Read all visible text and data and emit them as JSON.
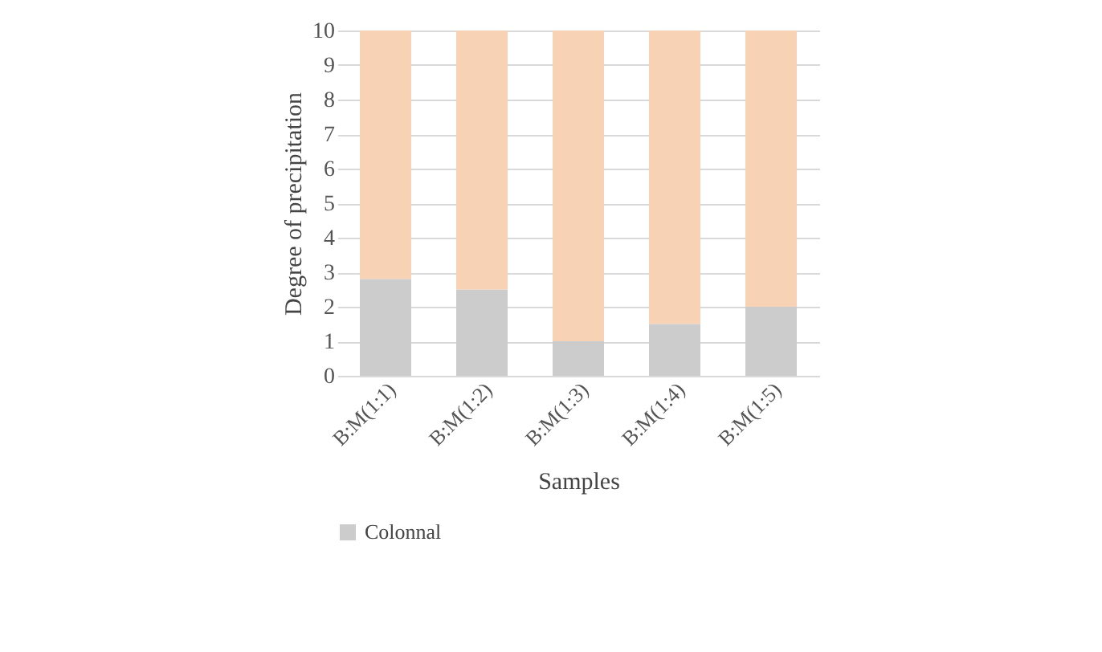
{
  "chart_data": {
    "type": "bar",
    "stacked": true,
    "xlabel": "Samples",
    "ylabel": "Degree of precipitation",
    "categories": [
      "B:M(1:1)",
      "B:M(1:2)",
      "B:M(1:3)",
      "B:M(1:4)",
      "B:M(1:5)"
    ],
    "series": [
      {
        "name": "Colonnal",
        "color": "#cccccc",
        "values": [
          2.8,
          2.5,
          1.0,
          1.5,
          2.0
        ]
      },
      {
        "color": "#f8d2b4",
        "values": [
          7.2,
          7.5,
          9.0,
          8.5,
          8.0
        ]
      }
    ],
    "ylim": [
      0,
      10
    ],
    "yticks": [
      0,
      1,
      2,
      3,
      4,
      5,
      6,
      7,
      8,
      9,
      10
    ],
    "grid": "y",
    "legend": "bottom"
  }
}
